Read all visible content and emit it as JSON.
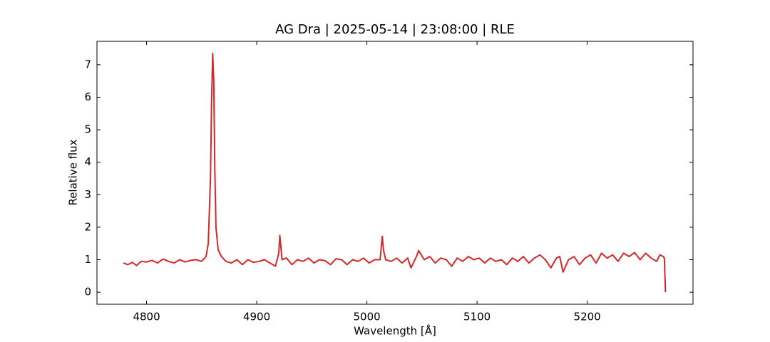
{
  "chart_data": {
    "type": "line",
    "title": "AG Dra | 2025-05-14 | 23:08:00 | RLE",
    "x_label": "Wavelength [Å]",
    "y_label": "Relative flux",
    "color": "#d62728",
    "x": [
      4779,
      4783,
      4787,
      4791,
      4795,
      4800,
      4805,
      4810,
      4815,
      4820,
      4825,
      4830,
      4835,
      4840,
      4845,
      4850,
      4854,
      4856,
      4858,
      4859,
      4860,
      4861,
      4862,
      4863,
      4865,
      4868,
      4872,
      4877,
      4882,
      4887,
      4892,
      4897,
      4902,
      4907,
      4912,
      4917,
      4920,
      4921,
      4923,
      4927,
      4932,
      4937,
      4942,
      4947,
      4952,
      4957,
      4962,
      4967,
      4972,
      4977,
      4982,
      4987,
      4992,
      4997,
      5002,
      5007,
      5012,
      5014,
      5015,
      5017,
      5022,
      5027,
      5032,
      5037,
      5040,
      5045,
      5047,
      5052,
      5057,
      5062,
      5067,
      5072,
      5077,
      5082,
      5087,
      5092,
      5097,
      5102,
      5107,
      5112,
      5117,
      5122,
      5127,
      5132,
      5137,
      5142,
      5147,
      5152,
      5157,
      5162,
      5167,
      5172,
      5175,
      5178,
      5183,
      5188,
      5193,
      5198,
      5203,
      5208,
      5213,
      5218,
      5223,
      5228,
      5233,
      5238,
      5243,
      5248,
      5253,
      5258,
      5263,
      5266,
      5269,
      5270,
      5271
    ],
    "values": [
      0.9,
      0.85,
      0.92,
      0.82,
      0.95,
      0.93,
      0.98,
      0.9,
      1.02,
      0.95,
      0.9,
      1.0,
      0.93,
      0.98,
      1.0,
      0.95,
      1.1,
      1.5,
      3.5,
      5.8,
      7.35,
      6.5,
      3.8,
      2.0,
      1.3,
      1.1,
      0.95,
      0.9,
      1.0,
      0.85,
      1.0,
      0.92,
      0.95,
      1.0,
      0.9,
      0.8,
      1.2,
      1.75,
      1.0,
      1.05,
      0.85,
      1.0,
      0.95,
      1.05,
      0.9,
      1.0,
      0.97,
      0.85,
      1.03,
      1.0,
      0.85,
      1.0,
      0.95,
      1.05,
      0.9,
      1.0,
      1.0,
      1.72,
      1.3,
      1.0,
      0.95,
      1.05,
      0.9,
      1.05,
      0.75,
      1.1,
      1.28,
      1.0,
      1.1,
      0.9,
      1.05,
      1.0,
      0.8,
      1.05,
      0.95,
      1.1,
      1.0,
      1.05,
      0.9,
      1.05,
      0.95,
      1.0,
      0.85,
      1.05,
      0.95,
      1.1,
      0.9,
      1.05,
      1.15,
      1.0,
      0.75,
      1.05,
      1.1,
      0.62,
      1.0,
      1.1,
      0.85,
      1.05,
      1.15,
      0.9,
      1.2,
      1.05,
      1.15,
      0.95,
      1.2,
      1.1,
      1.22,
      1.0,
      1.2,
      1.05,
      0.95,
      1.15,
      1.1,
      1.05,
      0
    ],
    "xlim": [
      4755,
      5296
    ],
    "ylim": [
      -0.37,
      7.72
    ],
    "xticks": [
      4800,
      4900,
      5000,
      5100,
      5200
    ],
    "yticks": [
      0,
      1,
      2,
      3,
      4,
      5,
      6,
      7
    ]
  }
}
